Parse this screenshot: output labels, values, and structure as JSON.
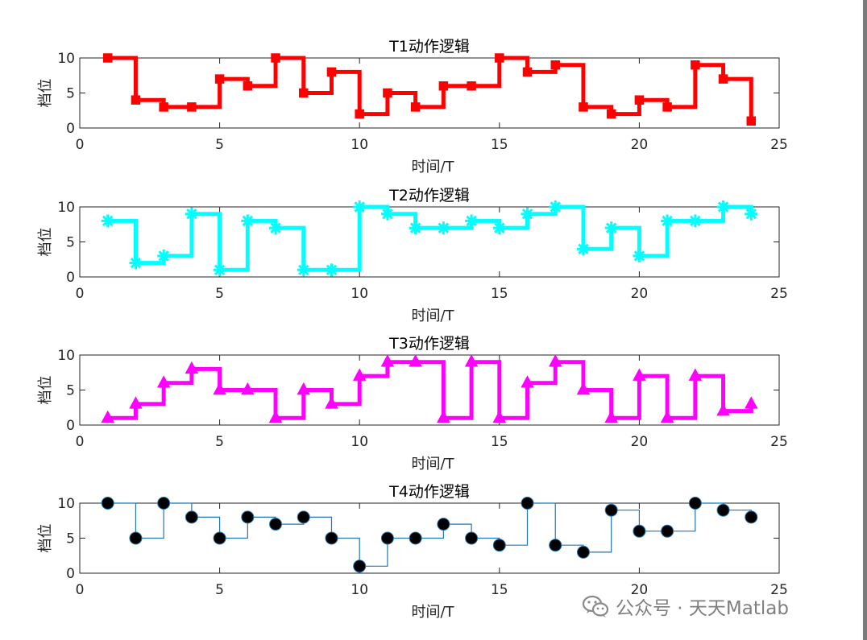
{
  "chart_data": [
    {
      "type": "line",
      "style": "stairs",
      "title": "T1动作逻辑",
      "xlabel": "时间/T",
      "ylabel": "档位",
      "xlim": [
        0,
        25
      ],
      "ylim": [
        0,
        10
      ],
      "xticks": [
        0,
        5,
        10,
        15,
        20,
        25
      ],
      "yticks": [
        0,
        5,
        10
      ],
      "color": "#ff0000",
      "marker": "square",
      "line": "thick",
      "x": [
        1,
        2,
        3,
        4,
        5,
        6,
        7,
        8,
        9,
        10,
        11,
        12,
        13,
        14,
        15,
        16,
        17,
        18,
        19,
        20,
        21,
        22,
        23,
        24
      ],
      "values": [
        10,
        4,
        3,
        3,
        7,
        6,
        10,
        5,
        8,
        2,
        5,
        3,
        6,
        6,
        10,
        8,
        9,
        3,
        2,
        4,
        3,
        9,
        7,
        1
      ]
    },
    {
      "type": "line",
      "style": "stairs",
      "title": "T2动作逻辑",
      "xlabel": "时间/T",
      "ylabel": "档位",
      "xlim": [
        0,
        25
      ],
      "ylim": [
        0,
        10
      ],
      "xticks": [
        0,
        5,
        10,
        15,
        20,
        25
      ],
      "yticks": [
        0,
        5,
        10
      ],
      "color": "#00ffff",
      "marker": "asterisk",
      "line": "thick",
      "x": [
        1,
        2,
        3,
        4,
        5,
        6,
        7,
        8,
        9,
        10,
        11,
        12,
        13,
        14,
        15,
        16,
        17,
        18,
        19,
        20,
        21,
        22,
        23,
        24
      ],
      "values": [
        8,
        2,
        3,
        9,
        1,
        8,
        7,
        1,
        1,
        10,
        9,
        7,
        7,
        8,
        7,
        9,
        10,
        4,
        7,
        3,
        8,
        8,
        10,
        9
      ]
    },
    {
      "type": "line",
      "style": "stairs",
      "title": "T3动作逻辑",
      "xlabel": "时间/T",
      "ylabel": "档位",
      "xlim": [
        0,
        25
      ],
      "ylim": [
        0,
        10
      ],
      "xticks": [
        0,
        5,
        10,
        15,
        20,
        25
      ],
      "yticks": [
        0,
        5,
        10
      ],
      "color": "#ff00ff",
      "marker": "triangle",
      "line": "thick",
      "x": [
        1,
        2,
        3,
        4,
        5,
        6,
        7,
        8,
        9,
        10,
        11,
        12,
        13,
        14,
        15,
        16,
        17,
        18,
        19,
        20,
        21,
        22,
        23,
        24
      ],
      "values": [
        1,
        3,
        6,
        8,
        5,
        5,
        1,
        5,
        3,
        7,
        9,
        9,
        1,
        9,
        1,
        6,
        9,
        5,
        1,
        7,
        1,
        7,
        2,
        3
      ]
    },
    {
      "type": "line",
      "style": "stairs",
      "title": "T4动作逻辑",
      "xlabel": "时间/T",
      "ylabel": "档位",
      "xlim": [
        0,
        25
      ],
      "ylim": [
        0,
        10
      ],
      "xticks": [
        0,
        5,
        10,
        15,
        20,
        25
      ],
      "yticks": [
        0,
        5,
        10
      ],
      "color": "#1f77b4",
      "marker_color": "#000000",
      "marker": "circle",
      "line": "thin",
      "x": [
        1,
        2,
        3,
        4,
        5,
        6,
        7,
        8,
        9,
        10,
        11,
        12,
        13,
        14,
        15,
        16,
        17,
        18,
        19,
        20,
        21,
        22,
        23,
        24
      ],
      "values": [
        10,
        5,
        10,
        8,
        5,
        8,
        7,
        8,
        5,
        1,
        5,
        5,
        7,
        5,
        4,
        10,
        4,
        3,
        9,
        6,
        6,
        10,
        9,
        8
      ]
    }
  ],
  "watermark": {
    "text": "公众号 · 天天Matlab",
    "icon": "wechat-icon"
  }
}
